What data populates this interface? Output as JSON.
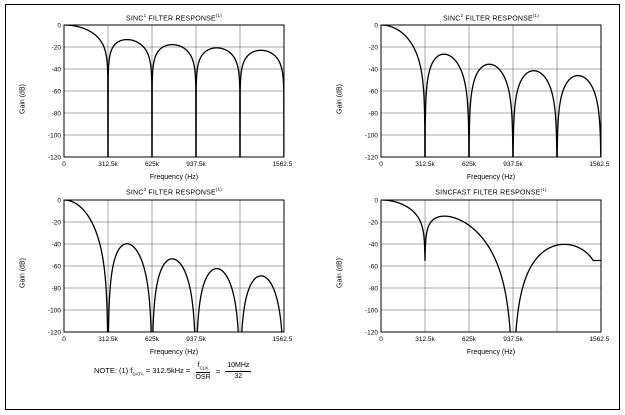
{
  "figure": {
    "note": {
      "prefix": "NOTE: (1) f",
      "prefix_sub": "DATA",
      "eq1": " = 312.5kHz = ",
      "frac1_num": "f",
      "frac1_num_sub": "CLK",
      "frac1_den": "OSR",
      "eq2": " = ",
      "frac2_num": "10MHz",
      "frac2_den": "32"
    }
  },
  "chart_data": [
    {
      "type": "line",
      "title": "SINC1 FILTER RESPONSE(1)",
      "title_parts": {
        "base": "SINC",
        "exp": "1",
        "rest": " FILTER RESPONSE",
        "footnote": "(1)"
      },
      "xlabel": "Frequency (Hz)",
      "ylabel": "Gain (dB)",
      "xlim_hz": [
        0,
        1562500
      ],
      "ylim_db": [
        -120,
        0
      ],
      "x_ticks_hz": [
        0,
        312500,
        625000,
        937500,
        1250000,
        1562500
      ],
      "x_tick_labels": [
        "0",
        "312.5k",
        "625k",
        "937.5k",
        "",
        "1562.5k"
      ],
      "y_ticks_db": [
        0,
        -20,
        -40,
        -60,
        -80,
        -100,
        -120
      ],
      "grid": true,
      "series": [
        {
          "name": "Gain",
          "model": "sinc_power",
          "order": 1,
          "f_null_hz": 312500
        }
      ]
    },
    {
      "type": "line",
      "title": "SINC2 FILTER RESPONSE(1)",
      "title_parts": {
        "base": "SINC",
        "exp": "2",
        "rest": " FILTER RESPONSE",
        "footnote": "(1)"
      },
      "xlabel": "Frequency (Hz)",
      "ylabel": "Gain (dB)",
      "xlim_hz": [
        0,
        1562500
      ],
      "ylim_db": [
        -120,
        0
      ],
      "x_ticks_hz": [
        0,
        312500,
        625000,
        937500,
        1250000,
        1562500
      ],
      "x_tick_labels": [
        "0",
        "312.5k",
        "625k",
        "937.5k",
        "",
        "1562.5k"
      ],
      "y_ticks_db": [
        0,
        -20,
        -40,
        -60,
        -80,
        -100,
        -120
      ],
      "grid": true,
      "series": [
        {
          "name": "Gain",
          "model": "sinc_power",
          "order": 2,
          "f_null_hz": 312500
        }
      ]
    },
    {
      "type": "line",
      "title": "SINC3 FILTER RESPONSE(1)",
      "title_parts": {
        "base": "SINC",
        "exp": "3",
        "rest": " FILTER RESPONSE",
        "footnote": "(1)"
      },
      "xlabel": "Frequency (Hz)",
      "ylabel": "Gain (dB)",
      "xlim_hz": [
        0,
        1562500
      ],
      "ylim_db": [
        -120,
        0
      ],
      "x_ticks_hz": [
        0,
        312500,
        625000,
        937500,
        1250000,
        1562500
      ],
      "x_tick_labels": [
        "0",
        "312.5k",
        "625k",
        "937.5k",
        "",
        "1562.5k"
      ],
      "y_ticks_db": [
        0,
        -20,
        -40,
        -60,
        -80,
        -100,
        -120
      ],
      "grid": true,
      "series": [
        {
          "name": "Gain",
          "model": "sinc_power",
          "order": 3,
          "f_null_hz": 312500
        }
      ]
    },
    {
      "type": "line",
      "title": "SINCFAST FILTER RESPONSE(1)",
      "title_parts": {
        "base": "SINCFAST",
        "exp": "",
        "rest": " FILTER RESPONSE",
        "footnote": "(1)"
      },
      "xlabel": "Frequency (Hz)",
      "ylabel": "Gain (dB)",
      "xlim_hz": [
        0,
        1562500
      ],
      "ylim_db": [
        -120,
        0
      ],
      "x_ticks_hz": [
        0,
        312500,
        625000,
        937500,
        1250000,
        1562500
      ],
      "x_tick_labels": [
        "0",
        "312.5k",
        "625k",
        "937.5k",
        "",
        "1562.5k"
      ],
      "y_ticks_db": [
        0,
        -20,
        -40,
        -60,
        -80,
        -100,
        -120
      ],
      "grid": true,
      "series": [
        {
          "name": "Gain",
          "model": "sinc3_cos",
          "sinc_null_hz": 937500,
          "notch_hz": 312500
        }
      ]
    }
  ]
}
